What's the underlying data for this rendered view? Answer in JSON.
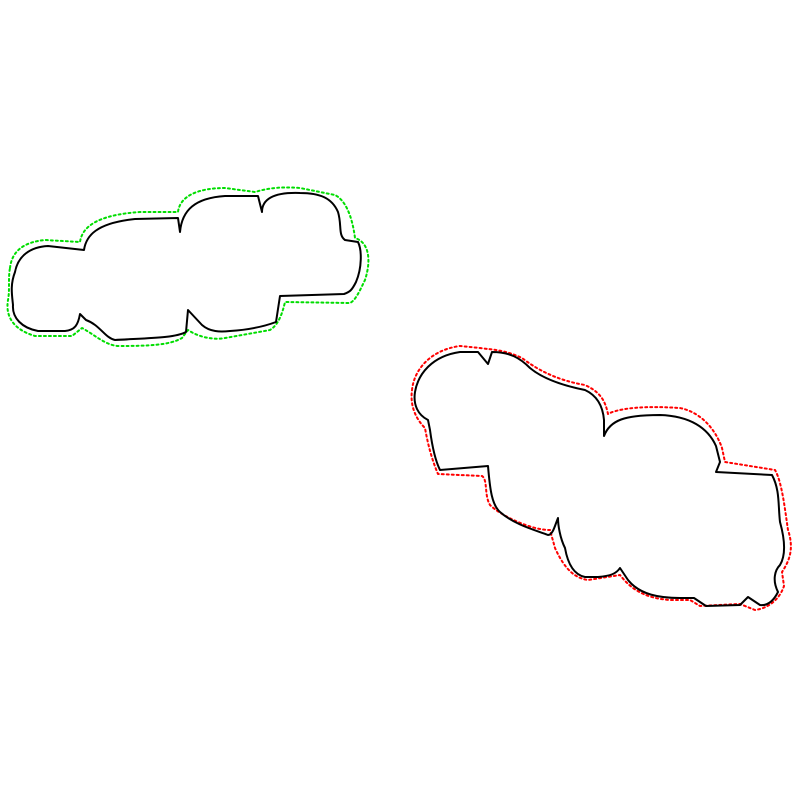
{
  "shapes": [
    {
      "name": "left-cloud",
      "outline_color": "#000000",
      "contour_color": "#00dd00",
      "contour_style": "dotted"
    },
    {
      "name": "right-cloud",
      "outline_color": "#000000",
      "contour_color": "#ff0000",
      "contour_style": "dotted"
    }
  ]
}
